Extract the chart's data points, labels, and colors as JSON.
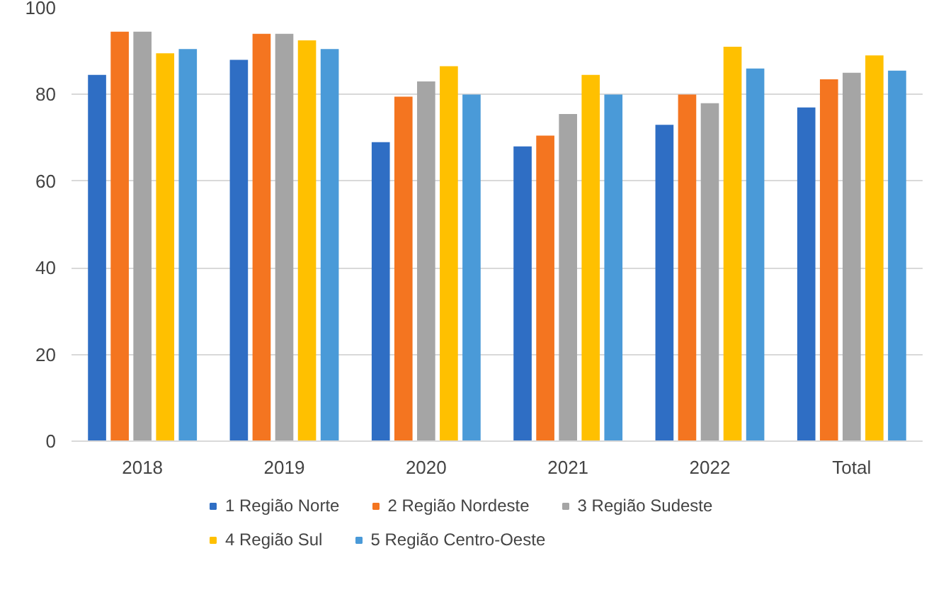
{
  "chart_data": {
    "type": "bar",
    "categories": [
      "2018",
      "2019",
      "2020",
      "2021",
      "2022",
      "Total"
    ],
    "series": [
      {
        "name": "1 Região Norte",
        "color": "#2f6ec4",
        "values": [
          84.5,
          88,
          69,
          68,
          73,
          77
        ]
      },
      {
        "name": "2 Região Nordeste",
        "color": "#f47520",
        "values": [
          94.5,
          94,
          79.5,
          70.5,
          80,
          83.5
        ]
      },
      {
        "name": "3 Região Sudeste",
        "color": "#a5a5a5",
        "values": [
          94.5,
          94,
          83,
          75.5,
          78,
          85
        ]
      },
      {
        "name": "4 Região Sul",
        "color": "#ffc000",
        "values": [
          89.5,
          92.5,
          86.5,
          84.5,
          91,
          89
        ]
      },
      {
        "name": "5 Região Centro-Oeste",
        "color": "#4a9ad8",
        "values": [
          90.5,
          90.5,
          80,
          80,
          86,
          85.5
        ]
      }
    ],
    "ylim": [
      0,
      100
    ],
    "yticks": [
      0,
      20,
      40,
      60,
      80,
      100
    ],
    "grid": "y",
    "legend": "bottom"
  }
}
